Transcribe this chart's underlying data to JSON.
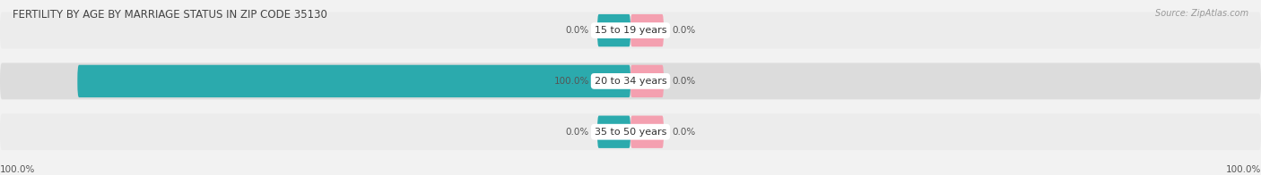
{
  "title": "FERTILITY BY AGE BY MARRIAGE STATUS IN ZIP CODE 35130",
  "source": "Source: ZipAtlas.com",
  "rows": [
    {
      "label": "15 to 19 years",
      "married": 0.0,
      "unmarried": 0.0
    },
    {
      "label": "20 to 34 years",
      "married": 100.0,
      "unmarried": 0.0
    },
    {
      "label": "35 to 50 years",
      "married": 0.0,
      "unmarried": 0.0
    }
  ],
  "married_color": "#2BAAAD",
  "unmarried_color": "#F4A0B0",
  "row_bg_colors": [
    "#ECECEC",
    "#DCDCDC",
    "#ECECEC"
  ],
  "max_value": 100.0,
  "label_fontsize": 8.0,
  "title_fontsize": 8.5,
  "source_fontsize": 7.0,
  "legend_fontsize": 8.5,
  "bottom_left_label": "100.0%",
  "bottom_right_label": "100.0%",
  "value_fontsize": 7.5
}
